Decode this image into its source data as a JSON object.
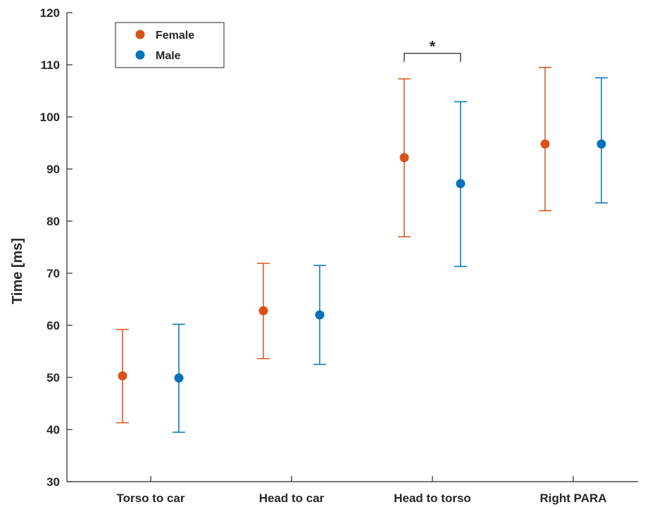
{
  "chart_data": {
    "type": "scatter",
    "xlabel": "",
    "ylabel": "Time [ms]",
    "ylim": [
      30,
      120
    ],
    "yticks": [
      30,
      40,
      50,
      60,
      70,
      80,
      90,
      100,
      110,
      120
    ],
    "ytick_labels": [
      "30",
      "40",
      "50",
      "60",
      "70",
      "80",
      "90",
      "100",
      "110",
      "120"
    ],
    "categories": [
      "Torso to car",
      "Head to car",
      "Head to torso",
      "Right PARA"
    ],
    "grid": false,
    "legend_position": "top-left",
    "series": [
      {
        "name": "Female",
        "color": "#D95319",
        "values": [
          50.3,
          62.8,
          92.2,
          94.8
        ],
        "lower": [
          41.3,
          53.6,
          77.0,
          82.0
        ],
        "upper": [
          59.2,
          71.9,
          107.3,
          109.5
        ]
      },
      {
        "name": "Male",
        "color": "#0072BD",
        "values": [
          49.9,
          62.0,
          87.2,
          94.8
        ],
        "upper": [
          60.2,
          71.5,
          102.9,
          107.5
        ],
        "lower": [
          39.5,
          52.5,
          71.3,
          83.5
        ]
      }
    ],
    "annotations": [
      {
        "text": "*",
        "category": "Head to torso",
        "between": [
          "Female",
          "Male"
        ],
        "y": 112.2
      }
    ]
  }
}
